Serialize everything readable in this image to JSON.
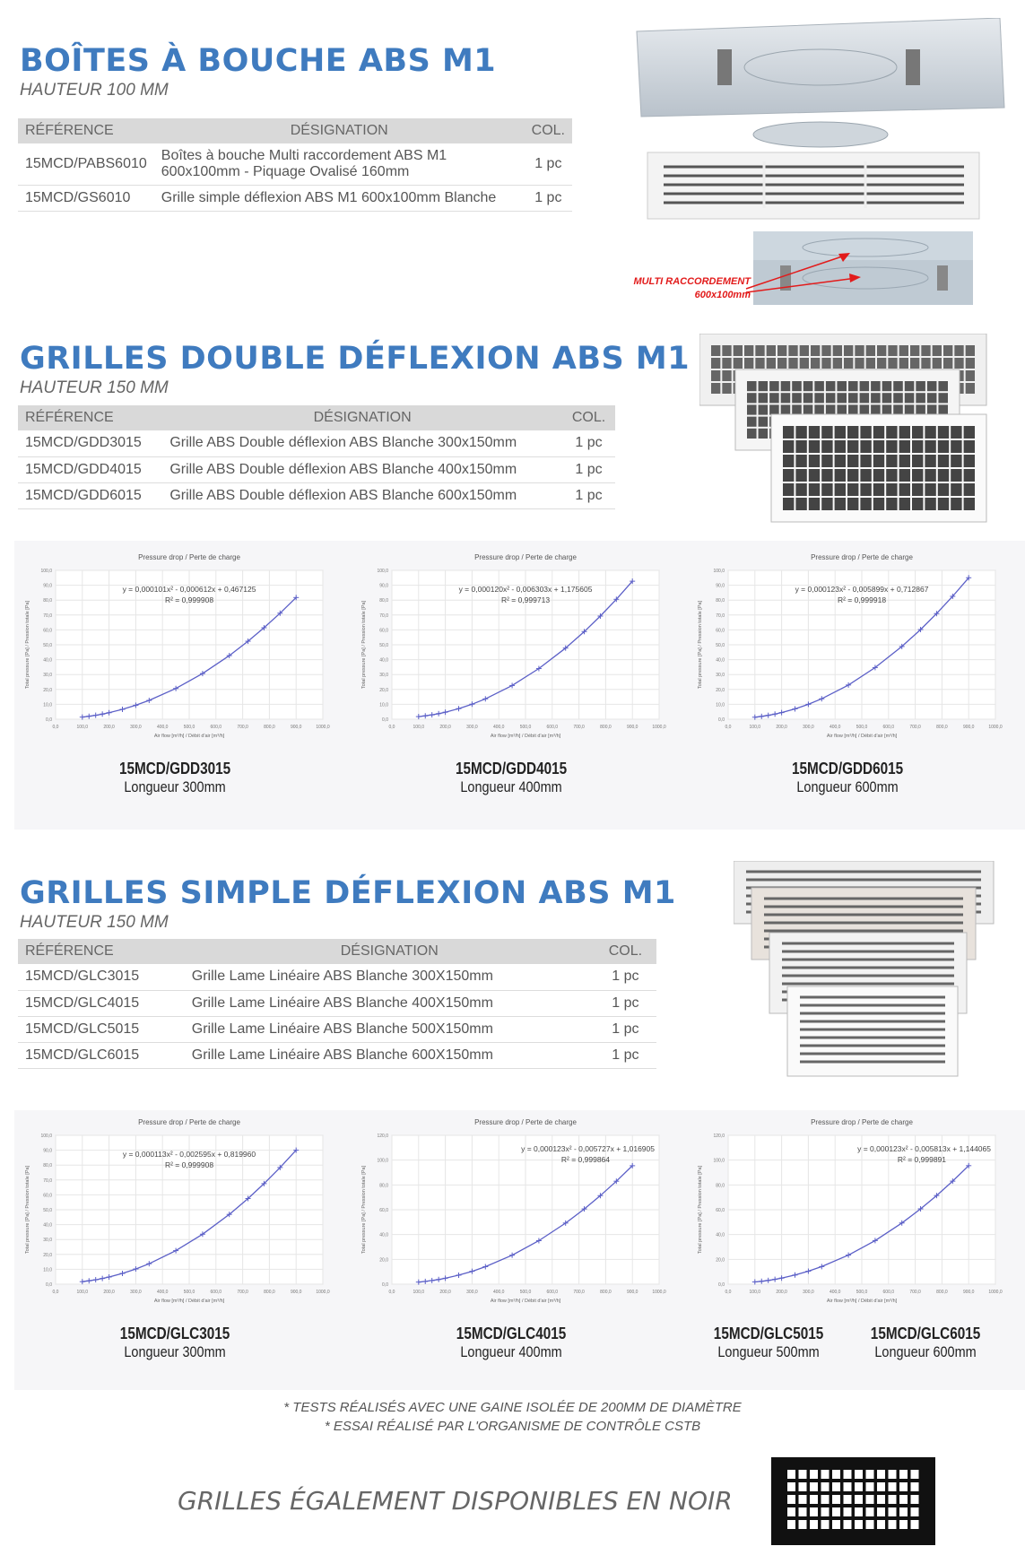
{
  "sections": [
    {
      "title": "BOÎTES À BOUCHE ABS M1",
      "subtitle": "HAUTEUR 100 MM",
      "headers": [
        "RÉFÉRENCE",
        "DÉSIGNATION",
        "COL."
      ],
      "rows": [
        [
          "15MCD/PABS6010",
          "Boîtes à bouche Multi raccordement ABS M1 600x100mm - Piquage Ovalisé 160mm",
          "1 pc"
        ],
        [
          "15MCD/GS6010",
          "Grille simple déflexion ABS M1 600x100mm Blanche",
          "1 pc"
        ]
      ],
      "annotation": [
        "MULTI RACCORDEMENT",
        "600x100mm"
      ]
    },
    {
      "title": "GRILLES DOUBLE DÉFLEXION ABS M1",
      "subtitle": "HAUTEUR 150 MM",
      "headers": [
        "RÉFÉRENCE",
        "DÉSIGNATION",
        "COL."
      ],
      "rows": [
        [
          "15MCD/GDD3015",
          "Grille ABS Double déflexion ABS Blanche 300x150mm",
          "1 pc"
        ],
        [
          "15MCD/GDD4015",
          "Grille ABS Double déflexion ABS Blanche 400x150mm",
          "1 pc"
        ],
        [
          "15MCD/GDD6015",
          "Grille ABS Double déflexion ABS Blanche 600x150mm",
          "1 pc"
        ]
      ]
    },
    {
      "title": "GRILLES SIMPLE DÉFLEXION ABS M1",
      "subtitle": "HAUTEUR 150 MM",
      "headers": [
        "RÉFÉRENCE",
        "DÉSIGNATION",
        "COL."
      ],
      "rows": [
        [
          "15MCD/GLC3015",
          "Grille Lame Linéaire ABS Blanche 300X150mm",
          "1 pc"
        ],
        [
          "15MCD/GLC4015",
          "Grille Lame Linéaire ABS Blanche 400X150mm",
          "1 pc"
        ],
        [
          "15MCD/GLC5015",
          "Grille Lame Linéaire ABS Blanche 500X150mm",
          "1 pc"
        ],
        [
          "15MCD/GLC6015",
          "Grille Lame Linéaire ABS Blanche 600X150mm",
          "1 pc"
        ]
      ]
    }
  ],
  "colors": {
    "title": "#3f7bbf",
    "series": "#5b5fc7",
    "annotation": "#e21b1b"
  },
  "chart_data": [
    {
      "type": "line",
      "title": "Pressure drop / Perte de charge",
      "xlabel": "Air flow [m³/h] / Débit d'air [m³/h]",
      "ylabel": "Total pressure [Pa] / Pression totale [Pa]",
      "xlim": [
        0,
        1000
      ],
      "ylim": [
        0,
        100
      ],
      "grid": true,
      "equation": "y = 0,000101x² - 0,000612x + 0,467125",
      "r2": "R² = 0,999908",
      "x": [
        100,
        125,
        150,
        175,
        200,
        250,
        300,
        350,
        450,
        550,
        650,
        720,
        780,
        840,
        900
      ],
      "y": [
        1.42,
        1.97,
        2.65,
        3.45,
        4.38,
        6.63,
        9.37,
        12.63,
        20.64,
        30.68,
        42.74,
        52.38,
        61.44,
        71.22,
        81.73
      ],
      "captions": [
        {
          "ref": "15MCD/GDD3015",
          "length": "Longueur 300mm"
        }
      ]
    },
    {
      "type": "line",
      "title": "Pressure drop / Perte de charge",
      "xlabel": "Air flow [m³/h] / Débit d'air [m³/h]",
      "ylabel": "Total pressure [Pa] / Pression totale [Pa]",
      "xlim": [
        0,
        1000
      ],
      "ylim": [
        0,
        100
      ],
      "grid": true,
      "equation": "y = 0,000120x² - 0,006303x + 1,175605",
      "r2": "R² = 0,999713",
      "x": [
        100,
        125,
        150,
        175,
        200,
        250,
        300,
        350,
        450,
        550,
        650,
        720,
        780,
        840,
        900
      ],
      "y": [
        1.75,
        2.26,
        2.93,
        3.75,
        4.72,
        7.1,
        10.09,
        13.67,
        22.64,
        34.01,
        47.78,
        58.85,
        69.27,
        80.55,
        92.7
      ],
      "captions": [
        {
          "ref": "15MCD/GDD4015",
          "length": "Longueur 400mm"
        }
      ]
    },
    {
      "type": "line",
      "title": "Pressure drop / Perte de charge",
      "xlabel": "Air flow [m³/h] / Débit d'air [m³/h]",
      "ylabel": "Total pressure [Pa] / Pression totale [Pa]",
      "xlim": [
        0,
        1000
      ],
      "ylim": [
        0,
        100
      ],
      "grid": true,
      "equation": "y = 0,000123x² - 0,005899x + 0,712867",
      "r2": "R² = 0,999918",
      "x": [
        100,
        125,
        150,
        175,
        200,
        250,
        300,
        350,
        450,
        550,
        650,
        720,
        780,
        840,
        900
      ],
      "y": [
        1.35,
        1.9,
        2.6,
        3.45,
        4.45,
        6.93,
        10.01,
        13.72,
        22.97,
        34.68,
        48.85,
        60.23,
        70.95,
        82.55,
        95.03
      ],
      "captions": [
        {
          "ref": "15MCD/GDD6015",
          "length": "Longueur 600mm"
        }
      ]
    },
    {
      "type": "line",
      "title": "Pressure drop / Perte de charge",
      "xlabel": "Air flow [m³/h] / Débit d'air [m³/h]",
      "ylabel": "Total pressure [Pa] / Pression totale [Pa]",
      "xlim": [
        0,
        1000
      ],
      "ylim": [
        0,
        100
      ],
      "grid": true,
      "equation": "y = 0,000113x² - 0,002595x + 0,819960",
      "r2": "R² = 0,999908",
      "x": [
        100,
        125,
        150,
        175,
        200,
        250,
        300,
        350,
        450,
        550,
        650,
        720,
        780,
        840,
        900
      ],
      "y": [
        1.69,
        2.26,
        2.97,
        3.83,
        4.82,
        7.23,
        10.21,
        13.75,
        22.53,
        33.58,
        46.88,
        57.53,
        67.55,
        78.37,
        90.01
      ],
      "captions": [
        {
          "ref": "15MCD/GLC3015",
          "length": "Longueur 300mm"
        }
      ]
    },
    {
      "type": "line",
      "title": "Pressure drop / Perte de charge",
      "xlabel": "Air flow [m³/h] / Débit d'air [m³/h]",
      "ylabel": "Total pressure [Pa] / Pression totale [Pa]",
      "xlim": [
        0,
        1000
      ],
      "ylim": [
        0,
        120
      ],
      "grid": true,
      "equation": "y = 0,000123x² - 0,005727x + 1,016905",
      "r2": "R² = 0,999864",
      "x": [
        100,
        125,
        150,
        175,
        200,
        250,
        300,
        350,
        450,
        550,
        650,
        720,
        780,
        840,
        900
      ],
      "y": [
        1.67,
        2.22,
        2.93,
        3.78,
        4.79,
        7.27,
        10.37,
        14.08,
        23.35,
        35.07,
        49.26,
        60.66,
        71.38,
        82.99,
        95.49
      ],
      "captions": [
        {
          "ref": "15MCD/GLC4015",
          "length": "Longueur 400mm"
        }
      ]
    },
    {
      "type": "line",
      "title": "Pressure drop / Perte de charge",
      "xlabel": "Air flow [m³/h] / Débit d'air [m³/h]",
      "ylabel": "Total pressure [Pa] / Pression totale [Pa]",
      "xlim": [
        0,
        1000
      ],
      "ylim": [
        0,
        120
      ],
      "grid": true,
      "equation": "y = 0,000123x² - 0,005813x + 1,144065",
      "r2": "R² = 0,999891",
      "x": [
        100,
        125,
        150,
        175,
        200,
        250,
        300,
        350,
        450,
        550,
        650,
        720,
        780,
        840,
        900
      ],
      "y": [
        1.79,
        2.34,
        3.04,
        3.89,
        4.9,
        7.38,
        10.47,
        14.18,
        23.44,
        35.15,
        49.33,
        60.72,
        71.44,
        83.05,
        95.54
      ],
      "captions": [
        {
          "ref": "15MCD/GLC5015",
          "length": "Longueur 500mm"
        },
        {
          "ref": "15MCD/GLC6015",
          "length": "Longueur 600mm"
        }
      ]
    }
  ],
  "footnotes": [
    "* TESTS RÉALISÉS AVEC UNE GAINE ISOLÉE DE 200MM DE DIAMÈTRE",
    "* ESSAI RÉALISÉ PAR L'ORGANISME DE CONTRÔLE CSTB"
  ],
  "bottom_text": "GRILLES ÉGALEMENT DISPONIBLES EN NOIR"
}
